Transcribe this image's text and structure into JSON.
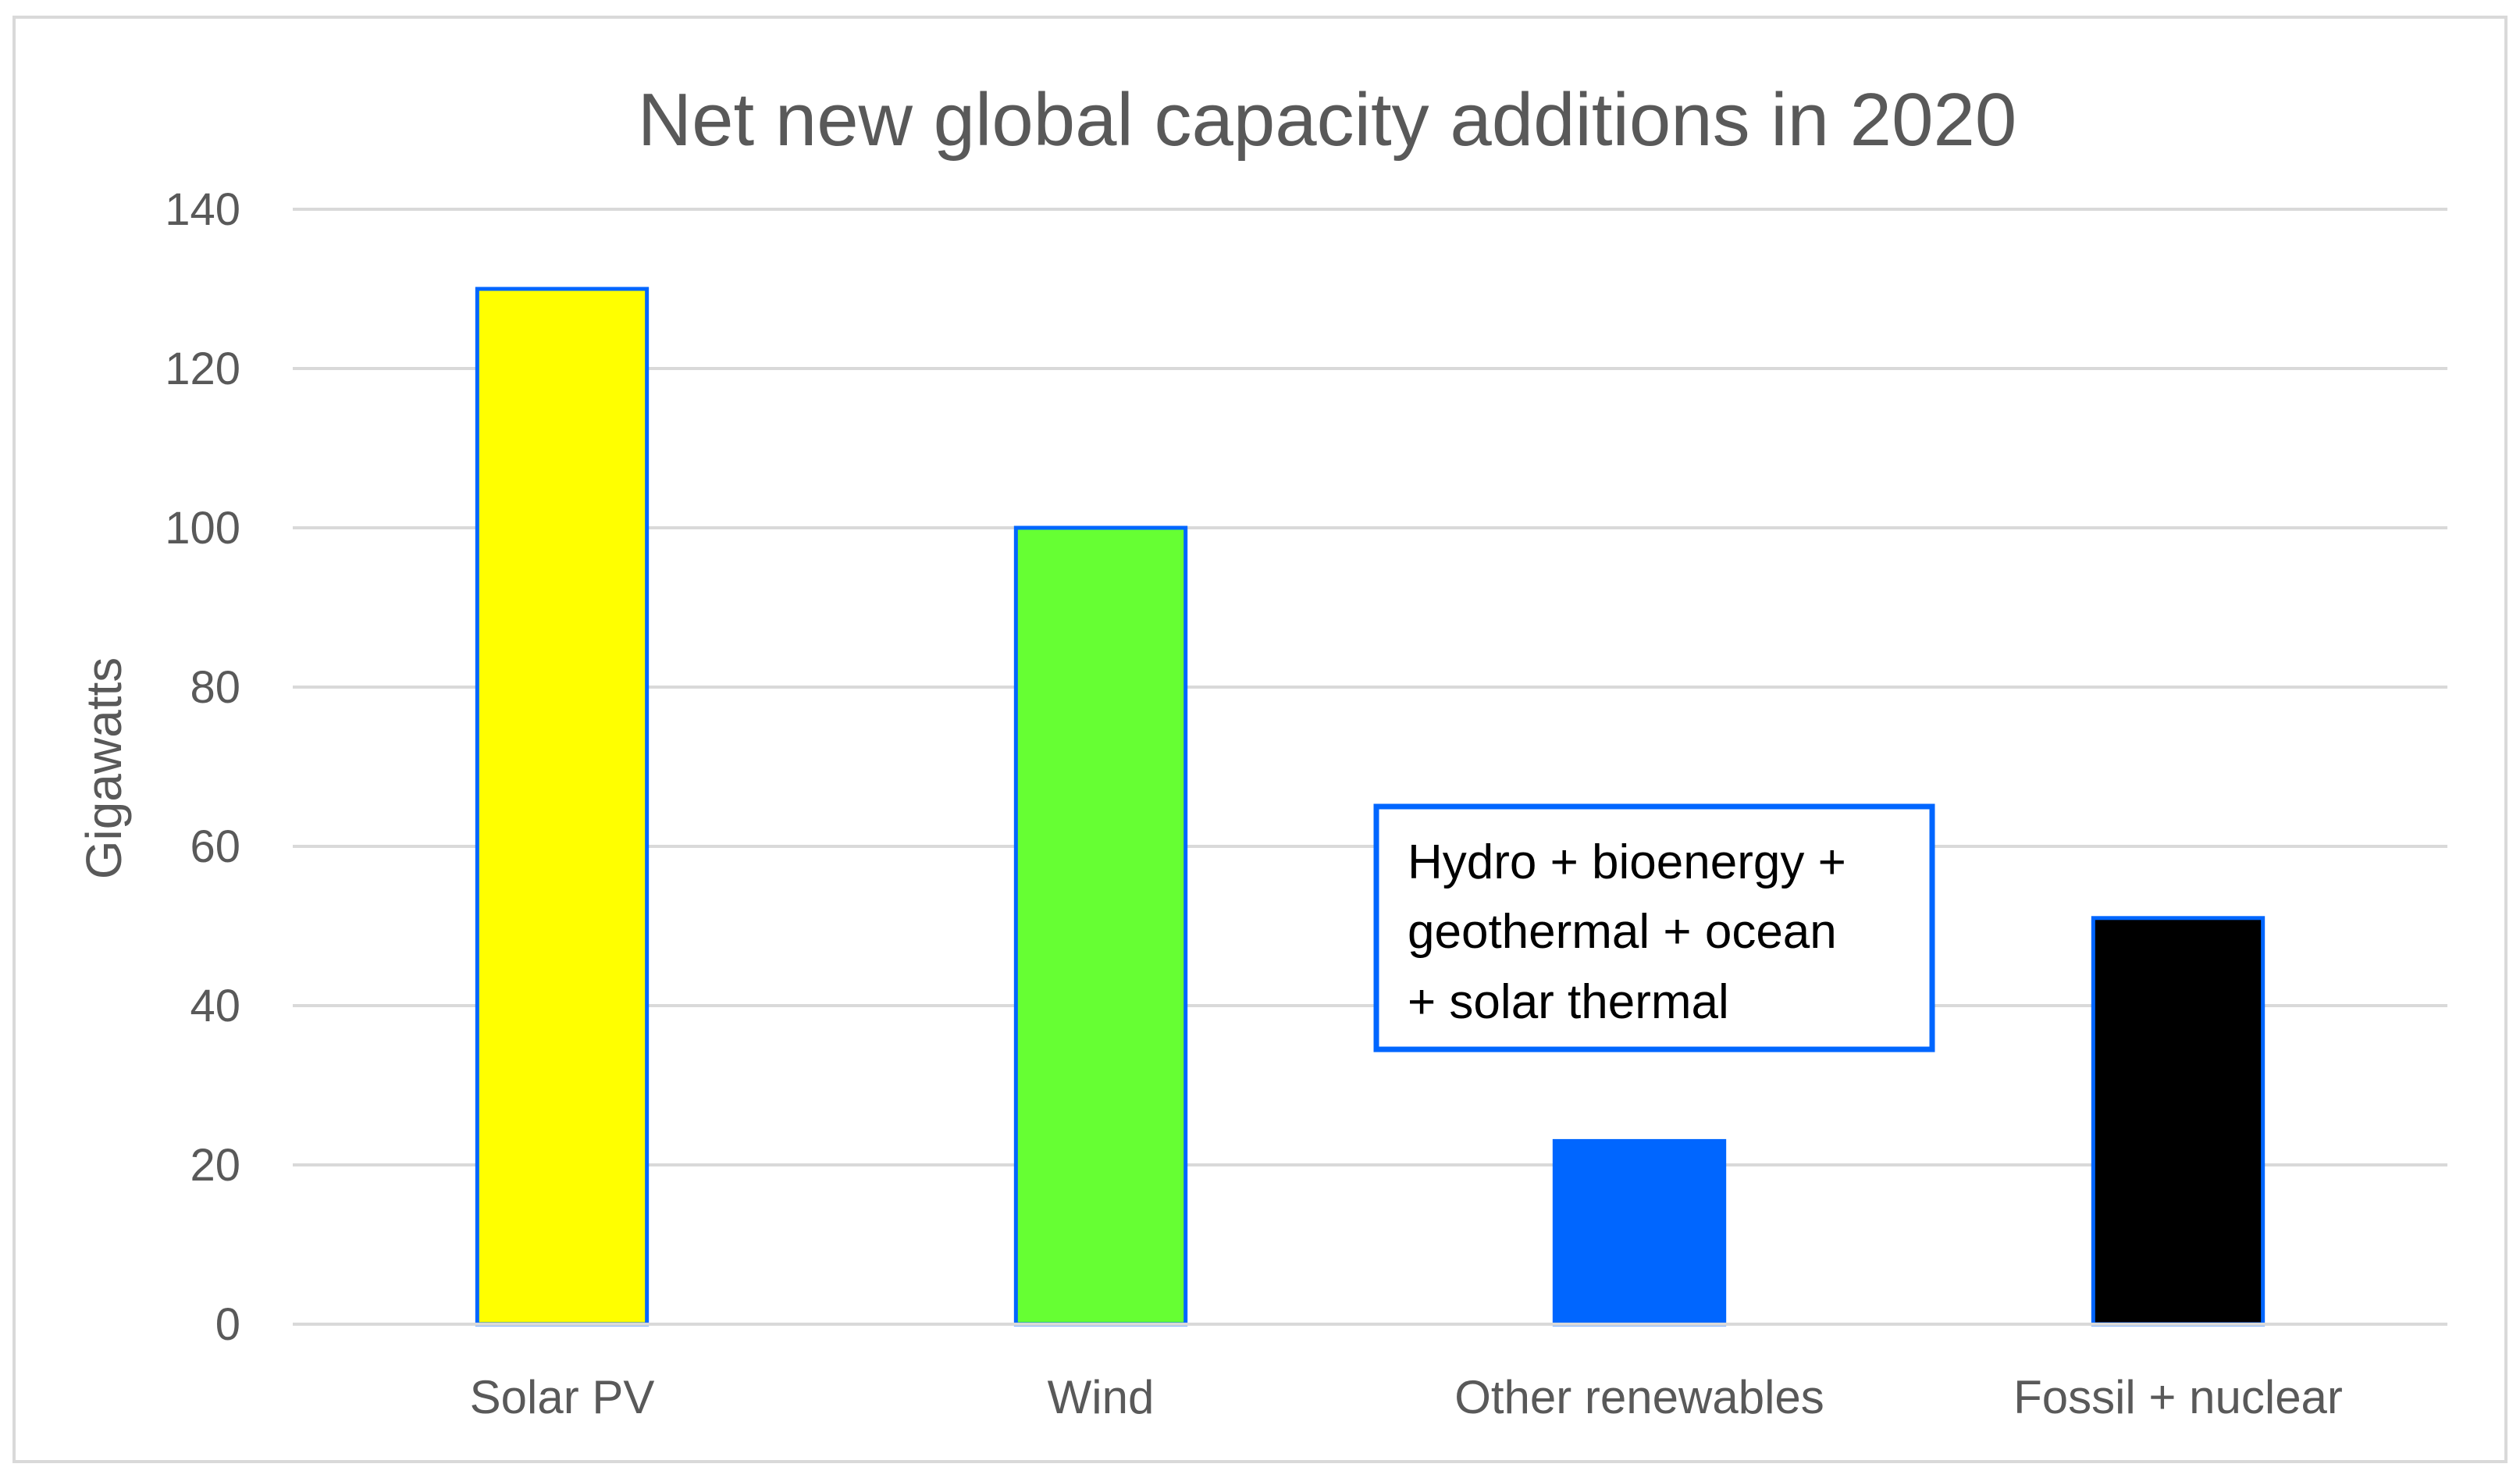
{
  "chart_data": {
    "type": "bar",
    "title": "Net new global capacity additions in 2020",
    "xlabel": "",
    "ylabel": "Gigawatts",
    "ylim": [
      0,
      140
    ],
    "yticks": [
      0,
      20,
      40,
      60,
      80,
      100,
      120,
      140
    ],
    "grid": true,
    "categories": [
      "Solar PV",
      "Wind",
      "Other renewables",
      "Fossil + nuclear"
    ],
    "values": [
      130,
      100,
      23,
      51
    ],
    "bar_colors": [
      "#ffff00",
      "#66ff33",
      "#0066ff",
      "#000000"
    ],
    "bar_outline_color": "#0066ff",
    "annotation": {
      "target": "Other renewables",
      "lines": [
        "Hydro + bioenergy +",
        "geothermal + ocean",
        "+ solar thermal"
      ],
      "border_color": "#0066ff"
    }
  }
}
